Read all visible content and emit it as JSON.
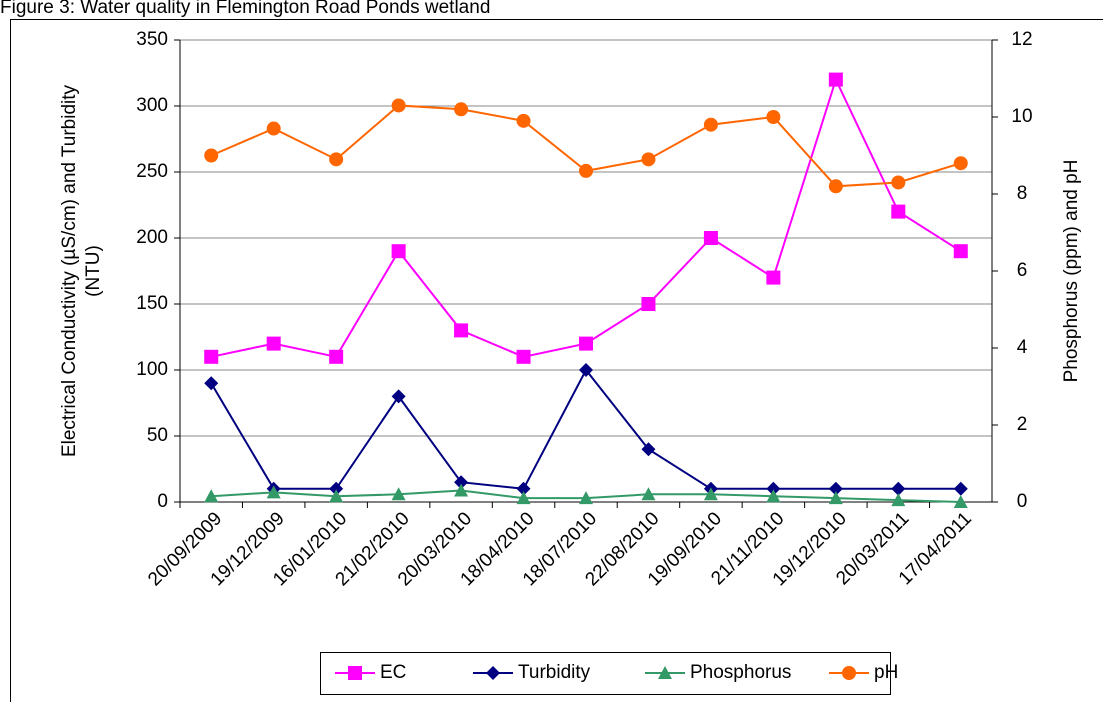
{
  "chart_data": {
    "type": "line",
    "title": "Figure 3: Water quality in Flemington Road Ponds wetland",
    "ylabel": [
      "Electrical Conductivity (µS/cm) and Turbidity",
      "(NTU)"
    ],
    "y2label": "Phosphorus (ppm) and pH",
    "categories": [
      "20/09/2009",
      "19/12/2009",
      "16/01/2010",
      "21/02/2010",
      "20/03/2010",
      "18/04/2010",
      "18/07/2010",
      "22/08/2010",
      "19/09/2010",
      "21/11/2010",
      "19/12/2010",
      "20/03/2011",
      "17/04/2011"
    ],
    "series": [
      {
        "name": "EC",
        "color": "#ff00ff",
        "marker": "square",
        "values": [
          110,
          120,
          110,
          190,
          130,
          110,
          120,
          150,
          200,
          170,
          320,
          220,
          190
        ]
      },
      {
        "name": "Turbidity",
        "color": "#000080",
        "marker": "diamond",
        "values": [
          90,
          10,
          10,
          80,
          15,
          10,
          100,
          40,
          10,
          10,
          10,
          10,
          10
        ]
      },
      {
        "name": "Phosphorus",
        "color": "#339966",
        "marker": "triangle",
        "axis": "y2",
        "values": [
          0.15,
          0.25,
          0.15,
          0.2,
          0.3,
          0.1,
          0.1,
          0.2,
          0.2,
          0.15,
          0.1,
          0.05,
          0.0
        ]
      },
      {
        "name": "pH",
        "color": "#ff6600",
        "marker": "circle",
        "axis": "y2",
        "values": [
          9.0,
          9.7,
          8.9,
          10.3,
          10.2,
          9.9,
          8.6,
          8.9,
          9.8,
          10.0,
          8.2,
          8.3,
          8.8
        ]
      }
    ],
    "ylim": [
      0,
      350
    ],
    "yticks": [
      0,
      50,
      100,
      150,
      200,
      250,
      300,
      350
    ],
    "y2lim": [
      0,
      12
    ],
    "y2ticks": [
      0,
      2,
      4,
      6,
      8,
      10,
      12
    ],
    "grid": true,
    "legend": "bottom"
  }
}
